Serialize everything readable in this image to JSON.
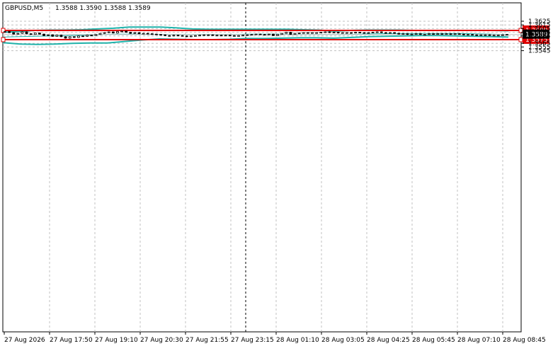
{
  "symbol_header": {
    "symbol": "GBPUSD,M5",
    "ohlc": "1.3588 1.3590 1.3588 1.3589"
  },
  "colors": {
    "candle": "#000000",
    "bollinger_bands": "#20b2aa",
    "horizontal_lines": "#e00000",
    "grid": "#c0c0c0",
    "current_price_box": "#000000"
  },
  "chart_data": {
    "type": "candlestick",
    "title": "GBPUSD,M5",
    "xlabel": "",
    "ylabel": "",
    "ylim": [
      1.354,
      1.363
    ],
    "grid": true,
    "y_ticks": [
      "1.3625",
      "1.3615",
      "1.3605",
      "1.3595",
      "1.3585",
      "1.3565",
      "1.3555",
      "1.3545"
    ],
    "x_ticks": [
      "27 Aug 2026",
      "27 Aug 17:50",
      "27 Aug 19:10",
      "27 Aug 20:30",
      "27 Aug 21:55",
      "27 Aug 23:15",
      "28 Aug 01:10",
      "28 Aug 03:05",
      "28 Aug 04:25",
      "28 Aug 05:45",
      "28 Aug 07:10",
      "28 Aug 08:45"
    ],
    "horizontal_lines": [
      {
        "value": 1.36,
        "label": "1.3600"
      },
      {
        "value": 1.3575,
        "label": "1.3575"
      }
    ],
    "current_price": {
      "value": 1.3589,
      "label": "1.3589"
    },
    "close_series": [
      1.3597,
      1.3594,
      1.359,
      1.3592,
      1.3596,
      1.3591,
      1.3589,
      1.3593,
      1.359,
      1.3586,
      1.3588,
      1.3584,
      1.3587,
      1.3583,
      1.3579,
      1.3583,
      1.3581,
      1.3585,
      1.3584,
      1.3587,
      1.3586,
      1.3589,
      1.3592,
      1.3594,
      1.3596,
      1.3593,
      1.3597,
      1.3598,
      1.3595,
      1.3592,
      1.3594,
      1.3591,
      1.3592,
      1.3591,
      1.359,
      1.3589,
      1.3588,
      1.3586,
      1.3585,
      1.3587,
      1.3586,
      1.3585,
      1.3583,
      1.3585,
      1.3586,
      1.3587,
      1.3588,
      1.3588,
      1.3587,
      1.3587,
      1.3586,
      1.3587,
      1.3586,
      1.3585,
      1.3586,
      1.3587,
      1.3588,
      1.3589,
      1.359,
      1.3589,
      1.3588,
      1.359,
      1.3586,
      1.3589,
      1.3592,
      1.3595,
      1.3589,
      1.3592,
      1.3593,
      1.3594,
      1.3593,
      1.3594,
      1.3594,
      1.3595,
      1.3596,
      1.3594,
      1.3595,
      1.3593,
      1.3594,
      1.3594,
      1.3593,
      1.3595,
      1.3594,
      1.3593,
      1.3594,
      1.3595,
      1.3596,
      1.3594,
      1.3593,
      1.3594,
      1.3592,
      1.359,
      1.3591,
      1.3589,
      1.359,
      1.3591,
      1.3589,
      1.3589,
      1.3591,
      1.359,
      1.3591,
      1.359,
      1.3591,
      1.3589,
      1.3591,
      1.359,
      1.3588,
      1.3589,
      1.3588,
      1.3587,
      1.3588,
      1.3588,
      1.3587,
      1.3587,
      1.3587,
      1.3588,
      1.3589
    ],
    "series": [
      {
        "name": "",
        "type": "bollinger_upper",
        "values": [
          1.3595,
          1.3597,
          1.36,
          1.3601,
          1.3601,
          1.3602,
          1.3604,
          1.3606,
          1.3609,
          1.3609,
          1.3609,
          1.3607,
          1.3604,
          1.3603,
          1.3603,
          1.3603,
          1.3603,
          1.3603,
          1.3603,
          1.3602,
          1.3601,
          1.3598,
          1.36,
          1.3601,
          1.3601,
          1.3601,
          1.36,
          1.36,
          1.36,
          1.36,
          1.36,
          1.36,
          1.3599
        ]
      },
      {
        "name": "",
        "type": "bollinger_middle",
        "values": [
          1.3582,
          1.3583,
          1.3584,
          1.3585,
          1.3586,
          1.3587,
          1.3589,
          1.359,
          1.359,
          1.3589,
          1.3589,
          1.3589,
          1.3589,
          1.3589,
          1.3589,
          1.359,
          1.359,
          1.359,
          1.3589,
          1.3589,
          1.3589,
          1.3589,
          1.359,
          1.3591,
          1.3592,
          1.3592,
          1.3592,
          1.3592,
          1.3592,
          1.3591,
          1.359,
          1.3589
        ]
      },
      {
        "name": "",
        "type": "bollinger_lower",
        "values": [
          1.3567,
          1.3563,
          1.3562,
          1.3563,
          1.3565,
          1.3566,
          1.3566,
          1.357,
          1.3574,
          1.3577,
          1.3576,
          1.3575,
          1.3575,
          1.3576,
          1.3578,
          1.3578,
          1.3579,
          1.358,
          1.358,
          1.3579,
          1.3581,
          1.3583,
          1.3584,
          1.3585,
          1.3586,
          1.3586,
          1.3585,
          1.3584,
          1.3583,
          1.3582
        ]
      }
    ]
  }
}
